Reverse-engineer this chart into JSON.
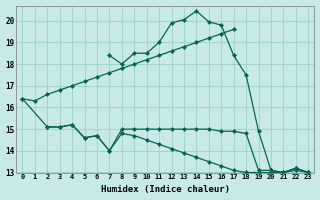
{
  "background_color": "#c8eae6",
  "grid_color": "#a0d4cc",
  "line_color": "#006655",
  "xlabel": "Humidex (Indice chaleur)",
  "xlim": [
    -0.5,
    23.5
  ],
  "ylim": [
    13,
    20.7
  ],
  "yticks": [
    13,
    14,
    15,
    16,
    17,
    18,
    19,
    20
  ],
  "xticks": [
    0,
    1,
    2,
    3,
    4,
    5,
    6,
    7,
    8,
    9,
    10,
    11,
    12,
    13,
    14,
    15,
    16,
    17,
    18,
    19,
    20,
    21,
    22,
    23
  ],
  "curve1_x": [
    0,
    1,
    2,
    3,
    4,
    5,
    6,
    7,
    8,
    9,
    10,
    11,
    12,
    13,
    14,
    15,
    16,
    17
  ],
  "curve1_y": [
    16.4,
    16.3,
    16.6,
    16.8,
    17.0,
    17.2,
    17.4,
    17.6,
    17.8,
    18.0,
    18.2,
    18.4,
    18.6,
    18.8,
    19.0,
    19.2,
    19.4,
    19.6
  ],
  "curve2_x": [
    0,
    2,
    3,
    4,
    5,
    6,
    7,
    8,
    9,
    10,
    11,
    12,
    13,
    14,
    15,
    16,
    17,
    18,
    19,
    20,
    21,
    22,
    23
  ],
  "curve2_y": [
    16.4,
    15.1,
    15.1,
    15.2,
    14.6,
    14.7,
    14.0,
    15.0,
    15.0,
    15.0,
    15.0,
    15.0,
    15.0,
    15.0,
    15.0,
    14.9,
    14.9,
    14.8,
    13.1,
    13.1,
    13.0,
    13.2,
    13.0
  ],
  "curve3_x": [
    2,
    3,
    4,
    5,
    6,
    7,
    8,
    9,
    10,
    11,
    12,
    13,
    14,
    15,
    16,
    17,
    18,
    19,
    20,
    21,
    22,
    23
  ],
  "curve3_y": [
    15.1,
    15.1,
    15.2,
    14.6,
    14.7,
    14.0,
    14.8,
    14.7,
    14.5,
    14.3,
    14.1,
    13.9,
    13.7,
    13.5,
    13.3,
    13.1,
    13.0,
    13.0,
    13.0,
    13.0,
    13.1,
    13.0
  ],
  "curve4_x": [
    7,
    8,
    9,
    10,
    11,
    12,
    13,
    14,
    15,
    16,
    17,
    18,
    19,
    20,
    21,
    22,
    23
  ],
  "curve4_y": [
    18.4,
    18.0,
    18.5,
    18.5,
    19.0,
    19.9,
    20.05,
    20.45,
    19.95,
    19.8,
    18.4,
    17.5,
    14.9,
    13.1,
    13.0,
    13.2,
    13.0
  ]
}
